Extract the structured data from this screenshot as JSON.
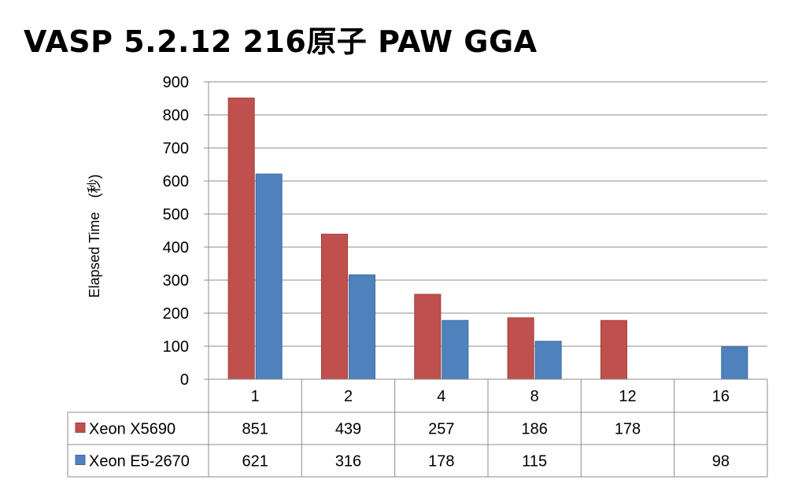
{
  "chart_data": {
    "type": "bar",
    "title": "VASP 5.2.12 216原子 PAW GGA",
    "ylabel": "Elapsed Time　(秒)",
    "xlabel": "",
    "ylim": [
      0,
      900
    ],
    "yticks": [
      0,
      100,
      200,
      300,
      400,
      500,
      600,
      700,
      800,
      900
    ],
    "categories": [
      "1",
      "2",
      "4",
      "8",
      "12",
      "16"
    ],
    "grid": true,
    "legend": "data-table",
    "series": [
      {
        "name": "Xeon X5690",
        "color": "#c0504d",
        "border": "#a23c3a",
        "values": [
          851,
          439,
          257,
          186,
          178,
          null
        ],
        "labels": [
          "851",
          "439",
          "257",
          "186",
          "178",
          ""
        ]
      },
      {
        "name": "Xeon E5-2670",
        "color": "#4f81bd",
        "border": "#3c6aa3",
        "values": [
          621,
          316,
          178,
          115,
          null,
          98
        ],
        "labels": [
          "621",
          "316",
          "178",
          "115",
          "",
          "98"
        ]
      }
    ]
  }
}
